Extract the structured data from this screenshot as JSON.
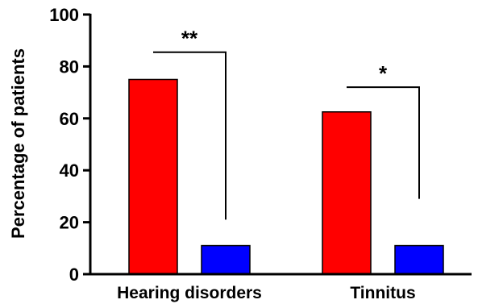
{
  "chart_data": {
    "type": "bar",
    "title": "",
    "xlabel": "",
    "ylabel": "Percentage of patients",
    "ylim": [
      0,
      100
    ],
    "yticks": [
      0,
      20,
      40,
      60,
      80,
      100
    ],
    "categories": [
      "Hearing disorders",
      "Tinnitus"
    ],
    "series": [
      {
        "values": [
          75,
          62.5
        ],
        "color": "#ff0000"
      },
      {
        "values": [
          11,
          11
        ],
        "color": "#0000ff"
      }
    ],
    "significance": [
      {
        "category": "Hearing disorders",
        "label": "**",
        "from_value": 85.5,
        "to_value": 21
      },
      {
        "category": "Tinnitus",
        "label": "*",
        "from_value": 72,
        "to_value": 29
      }
    ],
    "grid": false,
    "legend": "none"
  }
}
